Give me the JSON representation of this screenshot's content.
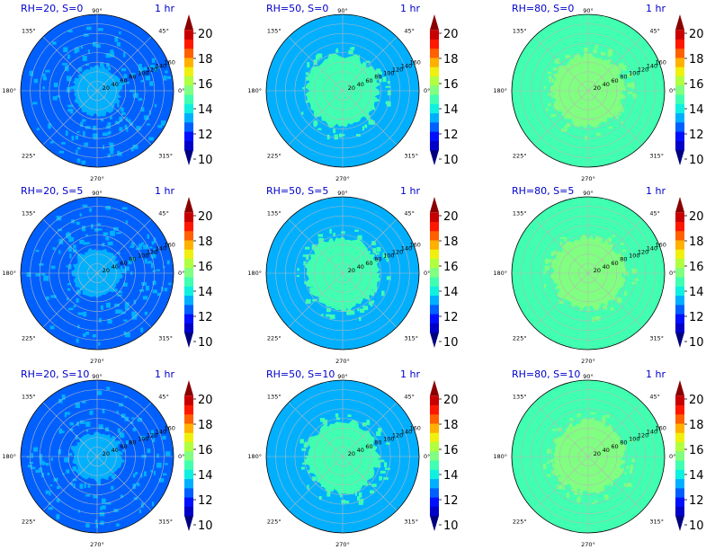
{
  "figure": {
    "colorbar": {
      "ticks": [
        "10",
        "12",
        "14",
        "16",
        "18",
        "20"
      ],
      "levels": [
        10,
        21
      ],
      "colors": [
        "#00007f",
        "#0000c8",
        "#0010ff",
        "#0060ff",
        "#00b0ff",
        "#10f0e0",
        "#40ffb0",
        "#80ff80",
        "#b0ff40",
        "#f0f010",
        "#ffb000",
        "#ff6000",
        "#ff1800",
        "#c80000",
        "#8a0000"
      ]
    },
    "angle_labels": [
      "0°",
      "45°",
      "90°",
      "135°",
      "180°",
      "225°",
      "270°",
      "315°"
    ],
    "radial_ticks": [
      "20",
      "40",
      "60",
      "80",
      "100",
      "120",
      "140",
      "160"
    ]
  },
  "chart_data": [
    {
      "type": "polar-heatmap",
      "title_left": "RH=20, S=0",
      "title_right": "1 hr",
      "rmax": 160,
      "background_value": 12.5,
      "patch_value": 13.5,
      "clim": [
        10,
        21
      ]
    },
    {
      "type": "polar-heatmap",
      "title_left": "RH=50, S=0",
      "title_right": "1 hr",
      "rmax": 160,
      "background_value": 13.5,
      "patch_value": 14.5,
      "clim": [
        10,
        21
      ]
    },
    {
      "type": "polar-heatmap",
      "title_left": "RH=80, S=0",
      "title_right": "1 hr",
      "rmax": 160,
      "background_value": 14.5,
      "patch_value": 15.5,
      "clim": [
        10,
        21
      ]
    },
    {
      "type": "polar-heatmap",
      "title_left": "RH=20, S=5",
      "title_right": "1 hr",
      "rmax": 160,
      "background_value": 12.5,
      "patch_value": 13.5,
      "clim": [
        10,
        21
      ]
    },
    {
      "type": "polar-heatmap",
      "title_left": "RH=50, S=5",
      "title_right": "1 hr",
      "rmax": 160,
      "background_value": 13.5,
      "patch_value": 14.5,
      "clim": [
        10,
        21
      ]
    },
    {
      "type": "polar-heatmap",
      "title_left": "RH=80, S=5",
      "title_right": "1 hr",
      "rmax": 160,
      "background_value": 14.5,
      "patch_value": 15.5,
      "clim": [
        10,
        21
      ]
    },
    {
      "type": "polar-heatmap",
      "title_left": "RH=20, S=10",
      "title_right": "1 hr",
      "rmax": 160,
      "background_value": 12.5,
      "patch_value": 13.5,
      "clim": [
        10,
        21
      ]
    },
    {
      "type": "polar-heatmap",
      "title_left": "RH=50, S=10",
      "title_right": "1 hr",
      "rmax": 160,
      "background_value": 13.5,
      "patch_value": 14.5,
      "clim": [
        10,
        21
      ]
    },
    {
      "type": "polar-heatmap",
      "title_left": "RH=80, S=10",
      "title_right": "1 hr",
      "rmax": 160,
      "background_value": 14.5,
      "patch_value": 15.5,
      "clim": [
        10,
        21
      ]
    }
  ]
}
